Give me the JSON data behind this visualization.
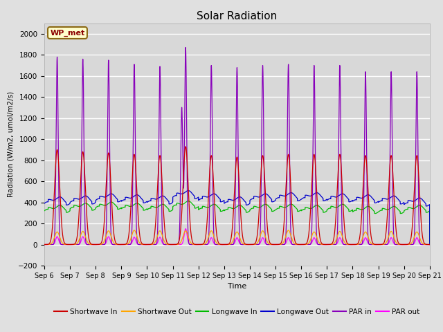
{
  "title": "Solar Radiation",
  "ylabel": "Radiation (W/m2, umol/m2/s)",
  "xlabel": "Time",
  "ylim": [
    -200,
    2100
  ],
  "yticks": [
    -200,
    0,
    200,
    400,
    600,
    800,
    1000,
    1200,
    1400,
    1600,
    1800,
    2000
  ],
  "background_color": "#e0e0e0",
  "plot_bg_color": "#d8d8d8",
  "label_box": "WP_met",
  "legend_entries": [
    {
      "label": "Shortwave In",
      "color": "#cc0000"
    },
    {
      "label": "Shortwave Out",
      "color": "#ffa500"
    },
    {
      "label": "Longwave In",
      "color": "#00bb00"
    },
    {
      "label": "Longwave Out",
      "color": "#0000cc"
    },
    {
      "label": "PAR in",
      "color": "#8800bb"
    },
    {
      "label": "PAR out",
      "color": "#ff00ff"
    }
  ],
  "n_days": 15,
  "start_day": 6,
  "end_day": 21,
  "shortwave_in_peaks": [
    900,
    880,
    870,
    855,
    845,
    930,
    845,
    830,
    845,
    855,
    855,
    855,
    845,
    845,
    845
  ],
  "shortwave_out_peaks": [
    120,
    125,
    130,
    135,
    130,
    130,
    130,
    120,
    130,
    135,
    120,
    125,
    120,
    125,
    120
  ],
  "par_in_peaks": [
    1780,
    1760,
    1750,
    1710,
    1690,
    1870,
    1700,
    1680,
    1700,
    1710,
    1700,
    1700,
    1640,
    1640,
    1640
  ],
  "par_out_peaks": [
    75,
    75,
    75,
    70,
    70,
    150,
    65,
    65,
    65,
    65,
    65,
    65,
    65,
    65,
    65
  ],
  "par_in_partial_peaks": [
    0,
    0,
    0,
    0,
    0,
    1300,
    0,
    0,
    0,
    0,
    0,
    0,
    0,
    0,
    0
  ],
  "longwave_in_values": [
    320,
    340,
    350,
    340,
    330,
    360,
    330,
    320,
    330,
    330,
    320,
    330,
    310,
    310,
    320
  ],
  "longwave_out_values": [
    390,
    400,
    420,
    410,
    400,
    450,
    420,
    390,
    420,
    430,
    430,
    420,
    410,
    400,
    380
  ]
}
